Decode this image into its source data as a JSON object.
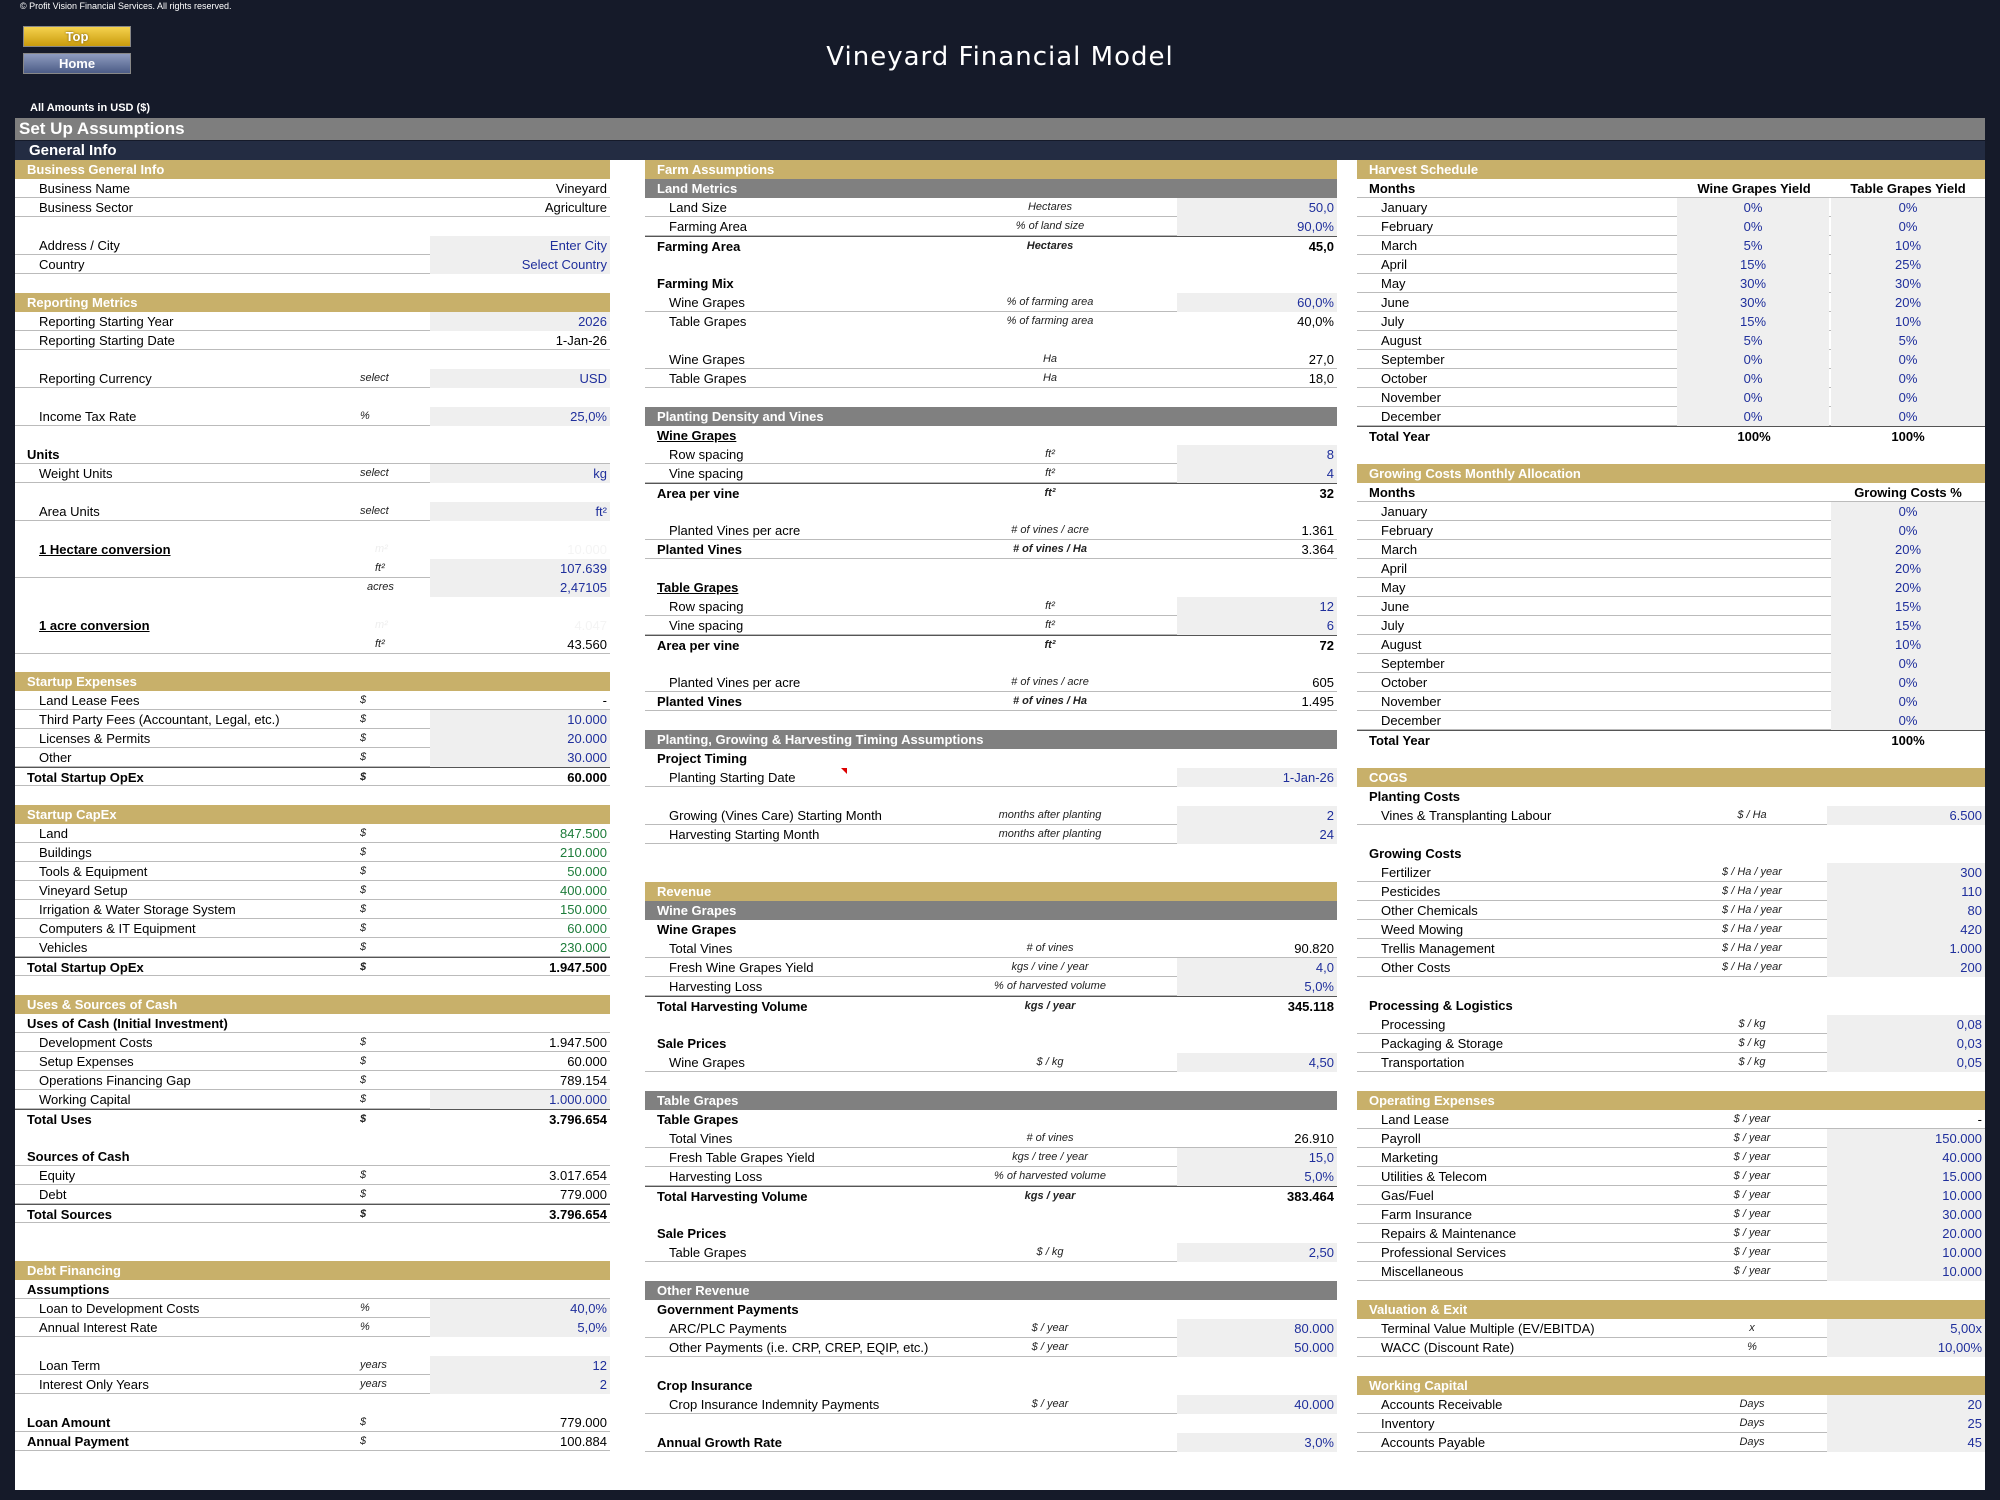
{
  "copyright": "© Profit Vision Financial Services. All rights reserved.",
  "nav": {
    "top": "Top",
    "home": "Home"
  },
  "title": "Vineyard Financial Model",
  "amounts_note": "All Amounts in  USD ($)",
  "setup_title": "Set Up Assumptions",
  "general_info": "General Info",
  "col1": {
    "business": {
      "title": "Business General Info",
      "name_label": "Business Name",
      "name": "Vineyard",
      "sector_label": "Business Sector",
      "sector": "Agriculture",
      "address_label": "Address / City",
      "address": "Enter City",
      "country_label": "Country",
      "country": "Select Country"
    },
    "reporting": {
      "title": "Reporting Metrics",
      "year_label": "Reporting Starting Year",
      "year": "2026",
      "date_label": "Reporting Starting Date",
      "date": "1-Jan-26",
      "currency_label": "Reporting Currency",
      "currency_unit": "select",
      "currency": "USD",
      "tax_label": "Income Tax Rate",
      "tax_unit": "%",
      "tax": "25,0%",
      "units_label": "Units",
      "weight_label": "Weight Units",
      "weight_unit": "select",
      "weight": "kg",
      "area_label": "Area Units",
      "area_unit": "select",
      "area": "ft²",
      "hectare_label": "1 Hectare conversion",
      "ha_m2_unit": "m²",
      "ha_m2": "10.000",
      "ha_ft_unit": "ft²",
      "ha_ft": "107.639",
      "ha_ac_unit": "acres",
      "ha_ac": "2,47105",
      "acre_label": "1 acre conversion",
      "ac_m2_unit": "m²",
      "ac_m2": "4.047",
      "ac_ft_unit": "ft²",
      "ac_ft": "43.560"
    },
    "startup_exp": {
      "title": "Startup Expenses",
      "rows": [
        {
          "label": "Land Lease Fees",
          "unit": "$",
          "value": "-"
        },
        {
          "label": "Third Party Fees (Accountant, Legal, etc.)",
          "unit": "$",
          "value": "10.000"
        },
        {
          "label": "Licenses & Permits",
          "unit": "$",
          "value": "20.000"
        },
        {
          "label": "Other",
          "unit": "$",
          "value": "30.000"
        }
      ],
      "total_label": "Total Startup OpEx",
      "total_unit": "$",
      "total": "60.000"
    },
    "capex": {
      "title": "Startup CapEx",
      "rows": [
        {
          "label": "Land",
          "unit": "$",
          "value": "847.500"
        },
        {
          "label": "Buildings",
          "unit": "$",
          "value": "210.000"
        },
        {
          "label": "Tools & Equipment",
          "unit": "$",
          "value": "50.000"
        },
        {
          "label": "Vineyard Setup",
          "unit": "$",
          "value": "400.000"
        },
        {
          "label": "Irrigation & Water Storage System",
          "unit": "$",
          "value": "150.000"
        },
        {
          "label": "Computers & IT Equipment",
          "unit": "$",
          "value": "60.000"
        },
        {
          "label": "Vehicles",
          "unit": "$",
          "value": "230.000"
        }
      ],
      "total_label": "Total Startup OpEx",
      "total_unit": "$",
      "total": "1.947.500"
    },
    "uses": {
      "title": "Uses & Sources of Cash",
      "uses_label": "Uses of Cash (Initial Investment)",
      "rows": [
        {
          "label": "Development Costs",
          "unit": "$",
          "value": "1.947.500"
        },
        {
          "label": "Setup Expenses",
          "unit": "$",
          "value": "60.000"
        },
        {
          "label": "Operations Financing Gap",
          "unit": "$",
          "value": "789.154"
        },
        {
          "label": "Working Capital",
          "unit": "$",
          "value": "1.000.000"
        }
      ],
      "total_uses_label": "Total Uses",
      "total_uses_unit": "$",
      "total_uses": "3.796.654",
      "sources_label": "Sources of Cash",
      "equity_label": "Equity",
      "equity_unit": "$",
      "equity": "3.017.654",
      "debt_label": "Debt",
      "debt_unit": "$",
      "debt": "779.000",
      "total_sources_label": "Total Sources",
      "total_sources_unit": "$",
      "total_sources": "3.796.654"
    },
    "debt": {
      "title": "Debt Financing",
      "assumptions_label": "Assumptions",
      "loan_dev_label": "Loan to Development Costs",
      "loan_dev_unit": "%",
      "loan_dev": "40,0%",
      "rate_label": "Annual Interest Rate",
      "rate_unit": "%",
      "rate": "5,0%",
      "term_label": "Loan Term",
      "term_unit": "years",
      "term": "12",
      "io_label": "Interest Only Years",
      "io_unit": "years",
      "io": "2",
      "amount_label": "Loan Amount",
      "amount_unit": "$",
      "amount": "779.000",
      "payment_label": "Annual Payment",
      "payment_unit": "$",
      "payment": "100.884"
    }
  },
  "col2": {
    "farm": {
      "title": "Farm Assumptions",
      "land_metrics": "Land Metrics",
      "land_size_label": "Land Size",
      "land_size_unit": "Hectares",
      "land_size": "50,0",
      "farming_area_pct_label": "Farming Area",
      "farming_area_pct_unit": "% of land size",
      "farming_area_pct": "90,0%",
      "farming_area_label": "Farming Area",
      "farming_area_unit": "Hectares",
      "farming_area": "45,0",
      "mix_label": "Farming Mix",
      "mix_wine_label": "Wine Grapes",
      "mix_wine_unit": "% of farming area",
      "mix_wine": "60,0%",
      "mix_table_label": "Table Grapes",
      "mix_table_unit": "% of farming area",
      "mix_table": "40,0%",
      "ha_wine_label": "Wine Grapes",
      "ha_wine_unit": "Ha",
      "ha_wine": "27,0",
      "ha_table_label": "Table Grapes",
      "ha_table_unit": "Ha",
      "ha_table": "18,0"
    },
    "density": {
      "title": "Planting Density and Vines",
      "wine_label": "Wine Grapes",
      "w_row_label": "Row spacing",
      "w_row_unit": "ft²",
      "w_row": "8",
      "w_vine_label": "Vine spacing",
      "w_vine_unit": "ft²",
      "w_vine": "4",
      "w_area_label": "Area per vine",
      "w_area_unit": "ft²",
      "w_area": "32",
      "w_acre_label": "Planted Vines per acre",
      "w_acre_unit": "# of vines / acre",
      "w_acre": "1.361",
      "w_ha_label": "Planted Vines",
      "w_ha_unit": "# of vines / Ha",
      "w_ha": "3.364",
      "table_label": "Table Grapes",
      "t_row_label": "Row spacing",
      "t_row_unit": "ft²",
      "t_row": "12",
      "t_vine_label": "Vine spacing",
      "t_vine_unit": "ft²",
      "t_vine": "6",
      "t_area_label": "Area per vine",
      "t_area_unit": "ft²",
      "t_area": "72",
      "t_acre_label": "Planted Vines per acre",
      "t_acre_unit": "# of vines / acre",
      "t_acre": "605",
      "t_ha_label": "Planted Vines",
      "t_ha_unit": "# of vines / Ha",
      "t_ha": "1.495"
    },
    "timing": {
      "title": "Planting, Growing & Harvesting Timing Assumptions",
      "project_label": "Project Timing",
      "start_label": "Planting Starting Date",
      "start": "1-Jan-26",
      "growing_label": "Growing (Vines Care) Starting Month",
      "growing_unit": "months after planting",
      "growing": "2",
      "harvest_label": "Harvesting Starting Month",
      "harvest_unit": "months after planting",
      "harvest": "24"
    },
    "revenue": {
      "title": "Revenue",
      "wine_bar": "Wine Grapes",
      "wine_label": "Wine Grapes",
      "w_total_label": "Total Vines",
      "w_total_unit": "# of vines",
      "w_total": "90.820",
      "w_yield_label": "Fresh Wine Grapes Yield",
      "w_yield_unit": "kgs / vine / year",
      "w_yield": "4,0",
      "w_loss_label": "Harvesting Loss",
      "w_loss_unit": "% of  harvested volume",
      "w_loss": "5,0%",
      "w_vol_label": "Total Harvesting Volume",
      "w_vol_unit": "kgs / year",
      "w_vol": "345.118",
      "w_sale_label": "Sale Prices",
      "w_price_label": "Wine Grapes",
      "w_price_unit": "$ / kg",
      "w_price": "4,50",
      "table_bar": "Table Grapes",
      "table_label": "Table Grapes",
      "t_total_label": "Total Vines",
      "t_total_unit": "# of vines",
      "t_total": "26.910",
      "t_yield_label": "Fresh Table Grapes Yield",
      "t_yield_unit": "kgs / tree / year",
      "t_yield": "15,0",
      "t_loss_label": "Harvesting Loss",
      "t_loss_unit": "% of  harvested volume",
      "t_loss": "5,0%",
      "t_vol_label": "Total Harvesting Volume",
      "t_vol_unit": "kgs / year",
      "t_vol": "383.464",
      "t_sale_label": "Sale Prices",
      "t_price_label": "Table Grapes",
      "t_price_unit": "$ / kg",
      "t_price": "2,50",
      "other_bar": "Other Revenue",
      "gov_label": "Government Payments",
      "arc_label": "ARC/PLC Payments",
      "arc_unit": "$ / year",
      "arc": "80.000",
      "oth_label": "Other Payments (i.e. CRP, CREP, EQIP, etc.)",
      "oth_unit": "$ / year",
      "oth": "50.000",
      "crop_label": "Crop Insurance",
      "crop_pay_label": "Crop Insurance Indemnity Payments",
      "crop_pay_unit": "$ / year",
      "crop_pay": "40.000",
      "growth_label": "Annual Growth Rate",
      "growth": "3,0%"
    }
  },
  "col3": {
    "harvest": {
      "title": "Harvest Schedule",
      "months_label": "Months",
      "wine_col": "Wine Grapes Yield",
      "table_col": "Table Grapes Yield",
      "rows": [
        {
          "month": "January",
          "wine": "0%",
          "table": "0%"
        },
        {
          "month": "February",
          "wine": "0%",
          "table": "0%"
        },
        {
          "month": "March",
          "wine": "5%",
          "table": "10%"
        },
        {
          "month": "April",
          "wine": "15%",
          "table": "25%"
        },
        {
          "month": "May",
          "wine": "30%",
          "table": "30%"
        },
        {
          "month": "June",
          "wine": "30%",
          "table": "20%"
        },
        {
          "month": "July",
          "wine": "15%",
          "table": "10%"
        },
        {
          "month": "August",
          "wine": "5%",
          "table": "5%"
        },
        {
          "month": "September",
          "wine": "0%",
          "table": "0%"
        },
        {
          "month": "October",
          "wine": "0%",
          "table": "0%"
        },
        {
          "month": "November",
          "wine": "0%",
          "table": "0%"
        },
        {
          "month": "December",
          "wine": "0%",
          "table": "0%"
        }
      ],
      "total_label": "Total Year",
      "total_wine": "100%",
      "total_table": "100%"
    },
    "growing": {
      "title": "Growing Costs Monthly Allocation",
      "months_label": "Months",
      "col": "Growing Costs %",
      "rows": [
        {
          "month": "January",
          "pct": "0%"
        },
        {
          "month": "February",
          "pct": "0%"
        },
        {
          "month": "March",
          "pct": "20%"
        },
        {
          "month": "April",
          "pct": "20%"
        },
        {
          "month": "May",
          "pct": "20%"
        },
        {
          "month": "June",
          "pct": "15%"
        },
        {
          "month": "July",
          "pct": "15%"
        },
        {
          "month": "August",
          "pct": "10%"
        },
        {
          "month": "September",
          "pct": "0%"
        },
        {
          "month": "October",
          "pct": "0%"
        },
        {
          "month": "November",
          "pct": "0%"
        },
        {
          "month": "December",
          "pct": "0%"
        }
      ],
      "total_label": "Total Year",
      "total": "100%"
    },
    "cogs": {
      "title": "COGS",
      "planting_label": "Planting Costs",
      "vines_label": "Vines & Transplanting Labour",
      "vines_unit": "$ / Ha",
      "vines": "6.500",
      "growing_label": "Growing Costs",
      "rows": [
        {
          "label": "Fertilizer",
          "unit": "$ / Ha / year",
          "value": "300"
        },
        {
          "label": "Pesticides",
          "unit": "$ / Ha / year",
          "value": "110"
        },
        {
          "label": "Other Chemicals",
          "unit": "$ / Ha / year",
          "value": "80"
        },
        {
          "label": "Weed Mowing",
          "unit": "$ / Ha / year",
          "value": "420"
        },
        {
          "label": "Trellis Management",
          "unit": "$ / Ha / year",
          "value": "1.000"
        },
        {
          "label": "Other Costs",
          "unit": "$ / Ha / year",
          "value": "200"
        }
      ],
      "proc_label": "Processing & Logistics",
      "proc_rows": [
        {
          "label": "Processing",
          "unit": "$ / kg",
          "value": "0,08"
        },
        {
          "label": "Packaging & Storage",
          "unit": "$ / kg",
          "value": "0,03"
        },
        {
          "label": "Transportation",
          "unit": "$ / kg",
          "value": "0,05"
        }
      ]
    },
    "opex": {
      "title": "Operating Expenses",
      "rows": [
        {
          "label": "Land Lease",
          "unit": "$ / year",
          "value": "-"
        },
        {
          "label": "Payroll",
          "unit": "$ / year",
          "value": "150.000"
        },
        {
          "label": "Marketing",
          "unit": "$ / year",
          "value": "40.000"
        },
        {
          "label": "Utilities & Telecom",
          "unit": "$ / year",
          "value": "15.000"
        },
        {
          "label": "Gas/Fuel",
          "unit": "$ / year",
          "value": "10.000"
        },
        {
          "label": "Farm Insurance",
          "unit": "$ / year",
          "value": "30.000"
        },
        {
          "label": "Repairs & Maintenance",
          "unit": "$ / year",
          "value": "20.000"
        },
        {
          "label": "Professional Services",
          "unit": "$ / year",
          "value": "10.000"
        },
        {
          "label": "Miscellaneous",
          "unit": "$ / year",
          "value": "10.000"
        }
      ]
    },
    "valuation": {
      "title": "Valuation & Exit",
      "tv_label": "Terminal Value Multiple (EV/EBITDA)",
      "tv_unit": "x",
      "tv": "5,00x",
      "wacc_label": "WACC (Discount Rate)",
      "wacc_unit": "%",
      "wacc": "10,00%"
    },
    "wc": {
      "title": "Working Capital",
      "rows": [
        {
          "label": "Accounts Receivable",
          "unit": "Days",
          "value": "20"
        },
        {
          "label": "Inventory",
          "unit": "Days",
          "value": "25"
        },
        {
          "label": "Accounts Payable",
          "unit": "Days",
          "value": "45"
        }
      ]
    }
  }
}
